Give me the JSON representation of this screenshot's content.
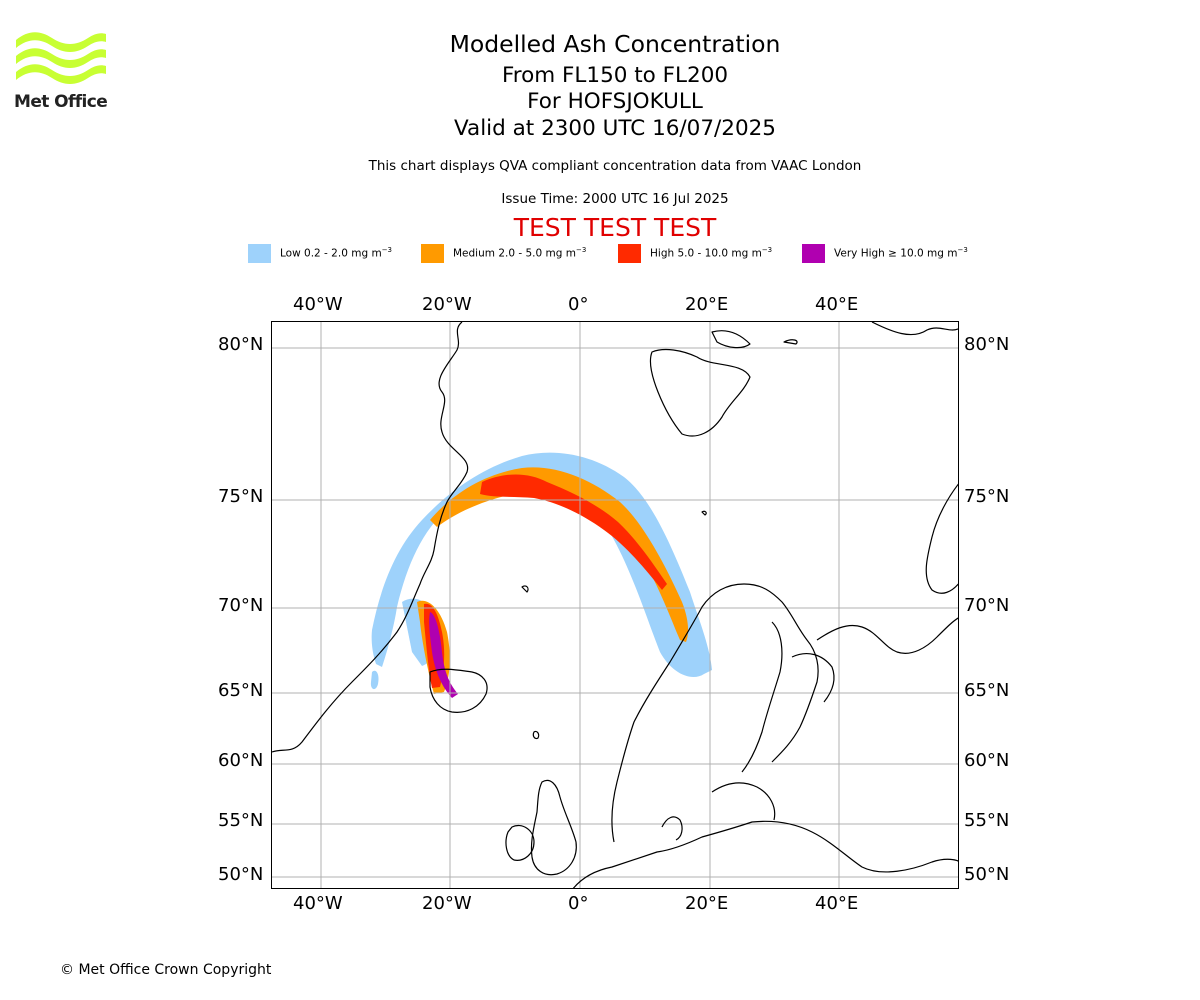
{
  "logo": {
    "text": "Met Office",
    "color": "#c8ff33"
  },
  "title": {
    "line1": "Modelled Ash Concentration",
    "line2": "From FL150 to FL200",
    "line3": "For HOFSJOKULL",
    "line4": "Valid at 2300 UTC 16/07/2025"
  },
  "description": "This chart displays QVA compliant concentration data from VAAC London",
  "issue_time": "Issue Time: 2000 UTC 16 Jul 2025",
  "test_banner": "TEST TEST TEST",
  "legend": [
    {
      "label": "Low 0.2 - 2.0 mg m",
      "unit_exp": "−3",
      "color": "#9ed2fb"
    },
    {
      "label": "Medium 2.0 - 5.0 mg m",
      "unit_exp": "−3",
      "color": "#ff9a00"
    },
    {
      "label": "High 5.0 - 10.0 mg m",
      "unit_exp": "−3",
      "color": "#ff2a00"
    },
    {
      "label": "Very High  ≥  10.0 mg m",
      "unit_exp": "−3",
      "color": "#b000b0"
    }
  ],
  "map": {
    "longitude_ticks": [
      "40°W",
      "20°W",
      "0°",
      "20°E",
      "40°E"
    ],
    "latitude_ticks": [
      "80°N",
      "75°N",
      "70°N",
      "65°N",
      "60°N",
      "55°N",
      "50°N"
    ],
    "gridline_color": "#b0b0b0",
    "coastline_color": "#000000"
  },
  "copyright": "© Met Office Crown Copyright"
}
